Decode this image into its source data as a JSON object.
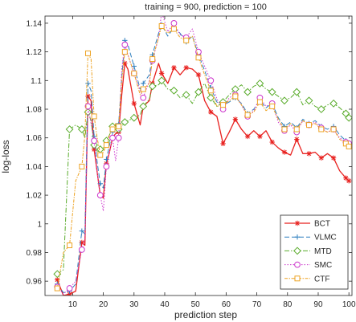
{
  "chart_data": {
    "type": "line",
    "title": "training = 900, prediction = 100",
    "xlabel": "prediction step",
    "ylabel": "log-loss",
    "xlim": [
      1,
      101
    ],
    "ylim": [
      0.95,
      1.145
    ],
    "xticks": [
      10,
      20,
      30,
      40,
      50,
      60,
      70,
      80,
      90,
      100
    ],
    "yticks": [
      0.96,
      0.98,
      1,
      1.02,
      1.04,
      1.06,
      1.08,
      1.1,
      1.12,
      1.14
    ],
    "xtick_labels": [
      "10",
      "20",
      "30",
      "40",
      "50",
      "60",
      "70",
      "80",
      "90",
      "100"
    ],
    "ytick_labels": [
      "0.96",
      "0.98",
      "1",
      "1.02",
      "1.04",
      "1.06",
      "1.08",
      "1.1",
      "1.12",
      "1.14"
    ],
    "grid": false,
    "legend_position": "lower-right",
    "series": [
      {
        "name": "BCT",
        "color": "#e8211f",
        "dash": "",
        "marker": "asterisk",
        "x": [
          5,
          7,
          9,
          11,
          13,
          14,
          15,
          16,
          17,
          18,
          19,
          20,
          21,
          22,
          23,
          24,
          25,
          26,
          27,
          28,
          30,
          32,
          33,
          35,
          36,
          38,
          39,
          41,
          43,
          45,
          47,
          49,
          51,
          53,
          55,
          57,
          59,
          61,
          63,
          65,
          67,
          69,
          71,
          73,
          75,
          77,
          79,
          81,
          83,
          85,
          87,
          89,
          91,
          93,
          95,
          97,
          99,
          100
        ],
        "y": [
          0.961,
          0.95,
          0.951,
          0.953,
          0.987,
          0.985,
          1.089,
          1.086,
          1.052,
          1.036,
          1.02,
          1.018,
          1.042,
          1.05,
          1.06,
          1.063,
          1.064,
          1.09,
          1.112,
          1.108,
          1.084,
          1.069,
          1.082,
          1.086,
          1.098,
          1.112,
          1.105,
          1.098,
          1.109,
          1.104,
          1.109,
          1.108,
          1.104,
          1.086,
          1.078,
          1.075,
          1.056,
          1.064,
          1.073,
          1.066,
          1.061,
          1.065,
          1.061,
          1.065,
          1.057,
          1.053,
          1.05,
          1.048,
          1.059,
          1.049,
          1.049,
          1.05,
          1.046,
          1.049,
          1.046,
          1.037,
          1.032,
          1.03
        ]
      },
      {
        "name": "VLMC",
        "color": "#2e7fbf",
        "dash": "6,3",
        "marker": "plus",
        "x": [
          5,
          7,
          9,
          11,
          13,
          14,
          15,
          16,
          17,
          18,
          19,
          20,
          21,
          22,
          23,
          24,
          25,
          26,
          27,
          28,
          30,
          32,
          33,
          35,
          36,
          38,
          39,
          41,
          43,
          45,
          47,
          49,
          51,
          53,
          55,
          57,
          59,
          61,
          63,
          65,
          67,
          69,
          71,
          73,
          75,
          77,
          79,
          81,
          83,
          85,
          87,
          89,
          91,
          93,
          95,
          97,
          99,
          100
        ],
        "y": [
          0.958,
          0.952,
          0.953,
          0.958,
          0.995,
          0.993,
          1.098,
          1.093,
          1.061,
          1.043,
          1.028,
          1.025,
          1.045,
          1.055,
          1.064,
          1.069,
          1.07,
          1.102,
          1.128,
          1.125,
          1.11,
          1.094,
          1.098,
          1.104,
          1.118,
          1.133,
          1.139,
          1.131,
          1.137,
          1.133,
          1.127,
          1.131,
          1.118,
          1.107,
          1.095,
          1.085,
          1.083,
          1.085,
          1.088,
          1.084,
          1.077,
          1.08,
          1.086,
          1.081,
          1.084,
          1.074,
          1.068,
          1.071,
          1.067,
          1.073,
          1.07,
          1.072,
          1.068,
          1.066,
          1.068,
          1.062,
          1.058,
          1.055
        ]
      },
      {
        "name": "MTD",
        "color": "#5aac2c",
        "dash": "6,2,1.5,2",
        "marker": "diamond",
        "x": [
          5,
          7,
          9,
          11,
          13,
          14,
          15,
          16,
          17,
          18,
          19,
          20,
          21,
          22,
          23,
          24,
          25,
          26,
          27,
          28,
          30,
          32,
          33,
          35,
          36,
          38,
          39,
          41,
          43,
          45,
          47,
          49,
          51,
          53,
          55,
          57,
          59,
          61,
          63,
          65,
          67,
          69,
          71,
          73,
          75,
          77,
          79,
          81,
          83,
          85,
          87,
          89,
          91,
          93,
          95,
          97,
          99,
          100
        ],
        "y": [
          0.965,
          0.968,
          1.066,
          1.069,
          1.066,
          1.06,
          1.078,
          1.072,
          1.055,
          1.05,
          1.052,
          1.053,
          1.058,
          1.062,
          1.068,
          1.066,
          1.066,
          1.068,
          1.071,
          1.072,
          1.074,
          1.076,
          1.082,
          1.087,
          1.096,
          1.097,
          1.1,
          1.094,
          1.093,
          1.088,
          1.09,
          1.084,
          1.092,
          1.098,
          1.088,
          1.082,
          1.085,
          1.09,
          1.094,
          1.097,
          1.092,
          1.096,
          1.098,
          1.094,
          1.092,
          1.089,
          1.086,
          1.088,
          1.092,
          1.083,
          1.086,
          1.082,
          1.08,
          1.083,
          1.084,
          1.081,
          1.077,
          1.074
        ]
      },
      {
        "name": "SMC",
        "color": "#cc33cc",
        "dash": "1.5,2",
        "marker": "circle",
        "x": [
          5,
          7,
          9,
          11,
          13,
          14,
          15,
          16,
          17,
          18,
          19,
          20,
          21,
          22,
          23,
          24,
          25,
          26,
          27,
          28,
          30,
          32,
          33,
          35,
          36,
          38,
          39,
          41,
          43,
          45,
          47,
          49,
          51,
          53,
          55,
          57,
          59,
          61,
          63,
          65,
          67,
          69,
          71,
          73,
          75,
          77,
          79,
          81,
          83,
          85,
          87,
          89,
          91,
          93,
          95,
          97,
          99,
          100
        ],
        "y": [
          0.956,
          0.951,
          0.955,
          0.96,
          0.982,
          0.99,
          1.082,
          1.07,
          1.058,
          1.036,
          1.02,
          1.009,
          1.04,
          1.05,
          1.06,
          1.044,
          1.06,
          1.108,
          1.125,
          1.118,
          1.105,
          1.093,
          1.088,
          1.1,
          1.114,
          1.13,
          1.148,
          1.134,
          1.14,
          1.132,
          1.13,
          1.136,
          1.12,
          1.11,
          1.1,
          1.087,
          1.08,
          1.088,
          1.09,
          1.083,
          1.075,
          1.079,
          1.088,
          1.082,
          1.084,
          1.071,
          1.065,
          1.069,
          1.064,
          1.072,
          1.069,
          1.071,
          1.067,
          1.064,
          1.066,
          1.06,
          1.057,
          1.056
        ]
      },
      {
        "name": "CTF",
        "color": "#eda323",
        "dash": "4,1.5,1.5,1.5",
        "marker": "square",
        "x": [
          5,
          7,
          9,
          11,
          13,
          14,
          15,
          16,
          17,
          18,
          19,
          20,
          21,
          22,
          23,
          24,
          25,
          26,
          27,
          28,
          30,
          32,
          33,
          35,
          36,
          38,
          39,
          41,
          43,
          45,
          47,
          49,
          51,
          53,
          55,
          57,
          59,
          61,
          63,
          65,
          67,
          69,
          71,
          73,
          75,
          77,
          79,
          81,
          83,
          85,
          87,
          89,
          91,
          93,
          95,
          97,
          99,
          100
        ],
        "y": [
          0.955,
          0.98,
          0.985,
          1.03,
          1.04,
          1.062,
          1.119,
          1.115,
          1.075,
          1.06,
          1.048,
          1.05,
          1.055,
          1.062,
          1.066,
          1.07,
          1.068,
          1.1,
          1.12,
          1.118,
          1.105,
          1.09,
          1.094,
          1.098,
          1.115,
          1.13,
          1.138,
          1.133,
          1.136,
          1.13,
          1.128,
          1.131,
          1.116,
          1.104,
          1.093,
          1.082,
          1.083,
          1.086,
          1.089,
          1.083,
          1.076,
          1.078,
          1.085,
          1.079,
          1.082,
          1.073,
          1.066,
          1.07,
          1.066,
          1.072,
          1.069,
          1.07,
          1.066,
          1.064,
          1.066,
          1.059,
          1.056,
          1.054
        ]
      }
    ]
  }
}
